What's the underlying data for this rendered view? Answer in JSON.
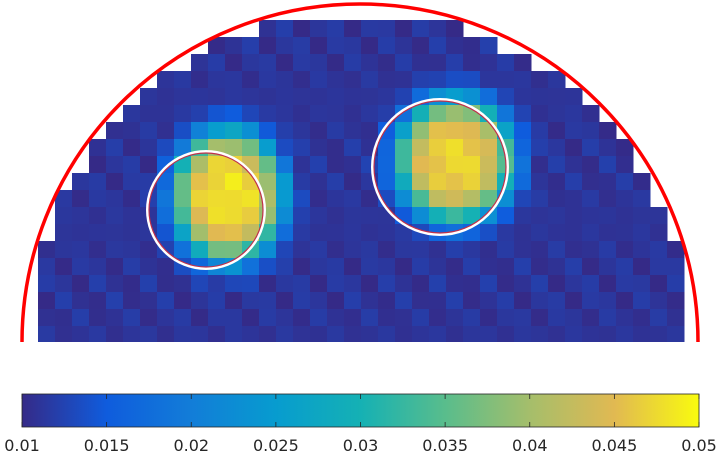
{
  "chart_data": {
    "type": "heatmap",
    "title": "",
    "xlabel": "",
    "ylabel": "",
    "colormap": "parula",
    "color_range": [
      0.01,
      0.05
    ],
    "background_level": 0.011,
    "domain_shape": "half-disk",
    "boundary_color": "#ff0000",
    "inclusion_outline_colors": [
      "#ffffff",
      "#c0304a"
    ],
    "hotspots": [
      {
        "label": "left inclusion",
        "peak_value": 0.048
      },
      {
        "label": "right inclusion",
        "peak_value": 0.047
      }
    ],
    "colorbar": {
      "orientation": "horizontal",
      "placement": "bottom",
      "ticks": [
        0.01,
        0.015,
        0.02,
        0.025,
        0.03,
        0.035,
        0.04,
        0.045,
        0.05
      ],
      "tick_labels": [
        "0.01",
        "0.015",
        "0.02",
        "0.025",
        "0.03",
        "0.035",
        "0.04",
        "0.045",
        "0.05"
      ]
    }
  }
}
